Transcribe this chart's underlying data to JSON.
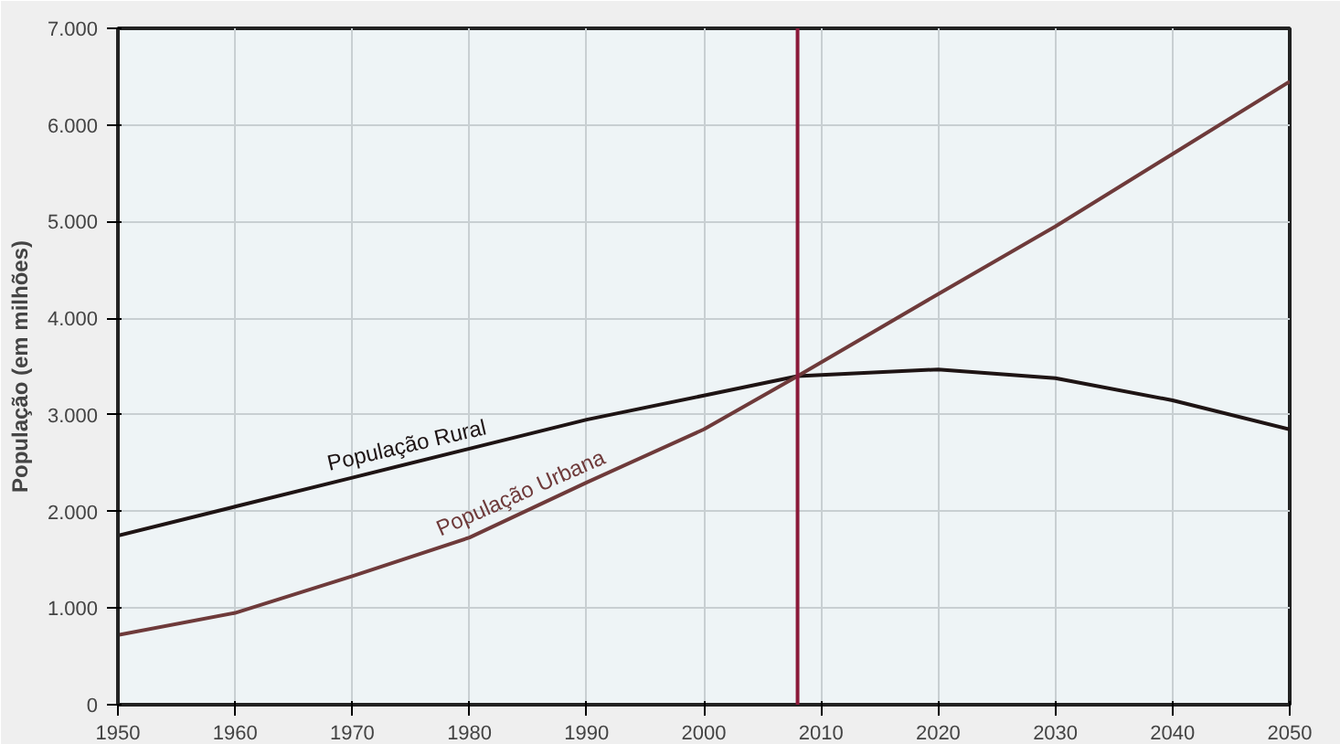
{
  "chart_data": {
    "type": "line",
    "ylabel": "População (em milhões)",
    "x": [
      1950,
      1960,
      1970,
      1980,
      1990,
      2000,
      2008,
      2020,
      2030,
      2040,
      2050
    ],
    "series": [
      {
        "name": "População Rural",
        "color": "#1e1414",
        "values": [
          1750,
          2050,
          2350,
          2650,
          2950,
          3200,
          3400,
          3470,
          3380,
          3150,
          2850
        ]
      },
      {
        "name": "População Urbana",
        "color": "#6e3a3a",
        "values": [
          720,
          950,
          1330,
          1730,
          2300,
          2850,
          3400,
          4250,
          4950,
          5700,
          6450
        ]
      }
    ],
    "xlim": [
      1950,
      2050
    ],
    "ylim": [
      0,
      7000
    ],
    "xticks": [
      1950,
      1960,
      1970,
      1980,
      1990,
      2000,
      2010,
      2020,
      2030,
      2040,
      2050
    ],
    "yticks": [
      0,
      {
        "value": 1000,
        "label": "1.000"
      },
      {
        "value": 2000,
        "label": "2.000"
      },
      {
        "value": 3000,
        "label": "3.000"
      },
      {
        "value": 4000,
        "label": "4.000"
      },
      {
        "value": 5000,
        "label": "5.000"
      },
      {
        "value": 6000,
        "label": "6.000"
      },
      {
        "value": 7000,
        "label": "7.000"
      }
    ],
    "ref_lines": [
      {
        "axis": "x",
        "value": 2008,
        "label": null,
        "color": "#8b1a3a"
      }
    ],
    "grid": true,
    "marker": "none",
    "line_style": "solid"
  }
}
